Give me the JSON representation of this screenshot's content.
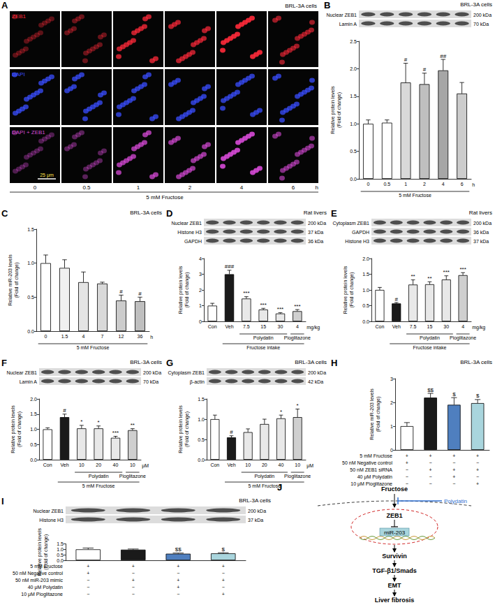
{
  "figure": {
    "A": {
      "panel": "A",
      "title": "BRL-3A cells",
      "rows": [
        "ZEB1",
        "DAPI",
        "DAPI + ZEB1"
      ],
      "times": [
        "0",
        "0.5",
        "1",
        "2",
        "4",
        "6"
      ],
      "unit": "h",
      "xlabel": "5 mM Fructose",
      "scale_bar": "25 μm"
    },
    "J": {
      "panel": "J",
      "nodes": {
        "fructose": "Fructose",
        "polydatin": "Polydatin",
        "zeb1": "ZEB1",
        "mir": "miR-203",
        "survivin": "Survivin",
        "tgf": "TGF-β1/Smads",
        "emt": "EMT",
        "fibrosis": "Liver fibrosis"
      }
    }
  },
  "chart_data": [
    {
      "panel": "B",
      "type": "bar",
      "title": "BRL-3A cells",
      "categories": [
        "0",
        "0.5",
        "1",
        "2",
        "4",
        "6"
      ],
      "values": [
        1.0,
        1.02,
        1.75,
        1.72,
        1.97,
        1.55
      ],
      "errors": [
        0.07,
        0.05,
        0.35,
        0.2,
        0.2,
        0.2
      ],
      "marks": [
        null,
        null,
        "#",
        "#",
        "##",
        null
      ],
      "colors": [
        "#ffffff",
        "#ffffff",
        "#d9d9d9",
        "#bfbfbf",
        "#a6a6a6",
        "#cccccc"
      ],
      "ylabel": "Relative protein levels\n(Fold of change)",
      "ylim": [
        0,
        2.5
      ],
      "yticks": [
        {
          "value": 0,
          "label": "0.0"
        },
        0.5,
        {
          "value": 1,
          "label": "1.0"
        },
        1.5,
        {
          "value": 2,
          "label": "2.0"
        },
        2.5
      ],
      "unit": "h",
      "supergroups": [
        "5 mM Fructose",
        "5 mM Fructose",
        "5 mM Fructose",
        "5 mM Fructose",
        "5 mM Fructose",
        "5 mM Fructose"
      ],
      "blot": [
        {
          "name": "Nuclear ZEB1",
          "size": "200 kDa"
        },
        {
          "name": "Lamin A",
          "size": "70 kDa"
        }
      ],
      "grid": false
    },
    {
      "panel": "C",
      "type": "bar",
      "title": "BRL-3A cells",
      "categories": [
        "0",
        "1.5",
        "4",
        "7",
        "12",
        "36"
      ],
      "values": [
        1.0,
        0.93,
        0.72,
        0.7,
        0.45,
        0.44
      ],
      "errors": [
        0.12,
        0.12,
        0.15,
        0.02,
        0.08,
        0.06
      ],
      "marks": [
        null,
        null,
        null,
        null,
        "#",
        "#"
      ],
      "colors": [
        "#ffffff",
        "#f0f0f0",
        "#e4e4e4",
        "#d9d9d9",
        "#cccccc",
        "#bfbfbf"
      ],
      "ylabel": "Relative miR-203 levels\n(Fold of change)",
      "ylim": [
        0,
        1.5
      ],
      "yticks": [
        {
          "value": 0,
          "label": "0.0"
        },
        0.5,
        {
          "value": 1,
          "label": "1.0"
        },
        1.5
      ],
      "unit": "h",
      "supergroups": [
        "5 mM Fructose",
        "5 mM Fructose",
        "5 mM Fructose",
        "5 mM Fructose",
        "5 mM Fructose",
        "5 mM Fructose"
      ],
      "grid": false
    },
    {
      "panel": "D",
      "type": "bar",
      "title": "Rat livers",
      "categories": [
        "Con",
        "Veh",
        "7.5",
        "15",
        "30",
        "4"
      ],
      "values": [
        1.0,
        3.0,
        1.45,
        0.75,
        0.5,
        0.65
      ],
      "errors": [
        0.15,
        0.25,
        0.12,
        0.08,
        0.05,
        0.1
      ],
      "marks": [
        null,
        "###",
        "***",
        "***",
        "***",
        "***"
      ],
      "colors": [
        "#ffffff",
        "#1a1a1a",
        "#e8e8e8",
        "#e8e8e8",
        "#e8e8e8",
        "#cfcfcf"
      ],
      "ylabel": "Relative protein levels\n(Fold of change)",
      "ylim": [
        0,
        4
      ],
      "yticks": [
        0,
        1,
        2,
        3,
        4
      ],
      "unit": "mg/kg",
      "groups": [
        null,
        null,
        "Polydatin",
        "Polydatin",
        "Polydatin",
        "Pioglitazone"
      ],
      "supergroups": [
        null,
        "Fructose intake",
        "Fructose intake",
        "Fructose intake",
        "Fructose intake",
        "Fructose intake"
      ],
      "blot": [
        {
          "name": "Nuclear ZEB1",
          "size": "200 kDa"
        },
        {
          "name": "Histone H3",
          "size": "37 kDa"
        },
        {
          "name": "GAPDH",
          "size": "36 kDa"
        }
      ],
      "grid": false
    },
    {
      "panel": "E",
      "type": "bar",
      "title": "Rat livers",
      "categories": [
        "Con",
        "Veh",
        "7.5",
        "15",
        "30",
        "4"
      ],
      "values": [
        1.0,
        0.57,
        1.17,
        1.18,
        1.33,
        1.47
      ],
      "errors": [
        0.08,
        0.03,
        0.15,
        0.08,
        0.12,
        0.08
      ],
      "marks": [
        null,
        "#",
        "**",
        "**",
        "***",
        "***"
      ],
      "colors": [
        "#ffffff",
        "#1a1a1a",
        "#e8e8e8",
        "#e8e8e8",
        "#e8e8e8",
        "#cfcfcf"
      ],
      "ylabel": "Relative protein levels\n(Fold of change)",
      "ylim": [
        0,
        2
      ],
      "yticks": [
        {
          "value": 0,
          "label": "0.0"
        },
        0.5,
        {
          "value": 1,
          "label": "1.0"
        },
        1.5,
        {
          "value": 2,
          "label": "2.0"
        }
      ],
      "unit": "mg/kg",
      "groups": [
        null,
        null,
        "Polydatin",
        "Polydatin",
        "Polydatin",
        "Pioglitazone"
      ],
      "supergroups": [
        null,
        "Fructose intake",
        "Fructose intake",
        "Fructose intake",
        "Fructose intake",
        "Fructose intake"
      ],
      "blot": [
        {
          "name": "Cytoplasm ZEB1",
          "size": "200 kDa"
        },
        {
          "name": "GAPDH",
          "size": "36 kDa"
        },
        {
          "name": "Histone H3",
          "size": "37 kDa"
        }
      ],
      "grid": false
    },
    {
      "panel": "F",
      "type": "bar",
      "title": "BRL-3A cells",
      "categories": [
        "Con",
        "Veh",
        "10",
        "20",
        "40",
        "10"
      ],
      "values": [
        1.0,
        1.4,
        1.03,
        1.03,
        0.72,
        0.97
      ],
      "errors": [
        0.05,
        0.1,
        0.1,
        0.08,
        0.05,
        0.05
      ],
      "marks": [
        null,
        "#",
        "*",
        "*",
        "***",
        "**"
      ],
      "colors": [
        "#ffffff",
        "#1a1a1a",
        "#e8e8e8",
        "#e8e8e8",
        "#e8e8e8",
        "#cfcfcf"
      ],
      "ylabel": "Relative protein levels\n(Fold of change)",
      "ylim": [
        0,
        2
      ],
      "yticks": [
        {
          "value": 0,
          "label": "0.0"
        },
        0.5,
        {
          "value": 1,
          "label": "1.0"
        },
        1.5,
        {
          "value": 2,
          "label": "2.0"
        }
      ],
      "unit": "μM",
      "groups": [
        null,
        null,
        "Polydatin",
        "Polydatin",
        "Polydatin",
        "Pioglitazone"
      ],
      "supergroups": [
        null,
        "5 mM Fructose",
        "5 mM Fructose",
        "5 mM Fructose",
        "5 mM Fructose",
        "5 mM Fructose"
      ],
      "blot": [
        {
          "name": "Nuclear ZEB1",
          "size": "200 kDa"
        },
        {
          "name": "Lamin A",
          "size": "70 kDa"
        }
      ],
      "grid": false
    },
    {
      "panel": "G",
      "type": "bar",
      "title": "BRL-3A cells",
      "categories": [
        "Con",
        "Veh",
        "10",
        "20",
        "40",
        "10"
      ],
      "values": [
        1.0,
        0.55,
        0.68,
        0.88,
        1.02,
        1.05
      ],
      "errors": [
        0.1,
        0.04,
        0.08,
        0.12,
        0.08,
        0.2
      ],
      "marks": [
        null,
        "#",
        null,
        null,
        "*",
        "*"
      ],
      "colors": [
        "#ffffff",
        "#1a1a1a",
        "#e8e8e8",
        "#e8e8e8",
        "#e8e8e8",
        "#cfcfcf"
      ],
      "ylabel": "Relative protein levels\n(Fold of change)",
      "ylim": [
        0,
        1.5
      ],
      "yticks": [
        {
          "value": 0,
          "label": "0.0"
        },
        0.5,
        {
          "value": 1,
          "label": "1.0"
        },
        1.5
      ],
      "unit": "μM",
      "groups": [
        null,
        null,
        "Polydatin",
        "Polydatin",
        "Polydatin",
        "Pioglitazone"
      ],
      "supergroups": [
        null,
        "5 mM Fructose",
        "5 mM Fructose",
        "5 mM Fructose",
        "5 mM Fructose",
        "5 mM Fructose"
      ],
      "blot": [
        {
          "name": "Cytoplasm ZEB1",
          "size": "200 kDa"
        },
        {
          "name": "β-actin",
          "size": "42 kDa"
        }
      ],
      "grid": false
    },
    {
      "panel": "H",
      "type": "bar",
      "title": "BRL-3A cells",
      "categories": [
        null,
        null,
        null,
        null
      ],
      "values": [
        1.0,
        2.2,
        1.9,
        1.97
      ],
      "errors": [
        0.15,
        0.18,
        0.3,
        0.15
      ],
      "marks": [
        null,
        "$$",
        "$",
        "$"
      ],
      "colors": [
        "#ffffff",
        "#1a1a1a",
        "#4f7fbf",
        "#a9d5dd"
      ],
      "ylabel": "Relative miR-203 levels\n(Fold of change)",
      "ylim": [
        0,
        3
      ],
      "yticks": [
        0,
        1,
        2,
        3
      ],
      "table": [
        {
          "label": "5 mM Fructose",
          "cells": [
            "+",
            "+",
            "+",
            "+"
          ]
        },
        {
          "label": "50 nM Negative control",
          "cells": [
            "+",
            "−",
            "−",
            "−"
          ]
        },
        {
          "label": "50 nM ZEB1 siRNA",
          "cells": [
            "−",
            "+",
            "+",
            "+"
          ]
        },
        {
          "label": "40 μM Polydatin",
          "cells": [
            "−",
            "−",
            "+",
            "−"
          ]
        },
        {
          "label": "10 μM Pioglitazone",
          "cells": [
            "−",
            "−",
            "−",
            "+"
          ]
        }
      ],
      "grid": false
    },
    {
      "panel": "I",
      "type": "bar",
      "title": "BRL-3A cells",
      "categories": [
        null,
        null,
        null,
        null
      ],
      "values": [
        1.0,
        0.97,
        0.6,
        0.63
      ],
      "errors": [
        0.12,
        0.06,
        0.06,
        0.06
      ],
      "marks": [
        null,
        null,
        "$$",
        "$"
      ],
      "colors": [
        "#ffffff",
        "#1a1a1a",
        "#4f7fbf",
        "#a9d5dd"
      ],
      "ylabel": "Relative protein levels\n(Fold of change)",
      "ylim": [
        0,
        1.5
      ],
      "yticks": [
        {
          "value": 0,
          "label": "0.0"
        },
        0.5,
        {
          "value": 1,
          "label": "1.0"
        },
        1.5
      ],
      "table": [
        {
          "label": "5 mM Fructose",
          "cells": [
            "+",
            "+",
            "+",
            "+"
          ]
        },
        {
          "label": "50 nM Negative control",
          "cells": [
            "+",
            "−",
            "−",
            "−"
          ]
        },
        {
          "label": "50 nM miR-203 mimic",
          "cells": [
            "−",
            "+",
            "+",
            "+"
          ]
        },
        {
          "label": "40 μM Polydatin",
          "cells": [
            "−",
            "−",
            "+",
            "−"
          ]
        },
        {
          "label": "10 μM Pioglitazone",
          "cells": [
            "−",
            "−",
            "−",
            "+"
          ]
        }
      ],
      "blot": [
        {
          "name": "Nuclear ZEB1",
          "size": "200 kDa"
        },
        {
          "name": "Histone H3",
          "size": "37 kDa"
        }
      ],
      "grid": false
    }
  ]
}
